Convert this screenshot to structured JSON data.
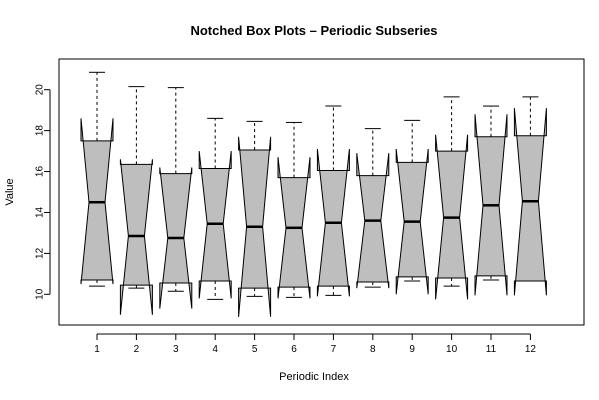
{
  "chart_data": {
    "type": "notched-box",
    "title": "Notched Box Plots – Periodic Subseries",
    "xlabel": "Periodic Index",
    "ylabel": "Value",
    "ylim": [
      8.5,
      21.5
    ],
    "yticks": [
      10,
      12,
      14,
      16,
      18,
      20
    ],
    "box_fill": "#bebebe",
    "categories": [
      "1",
      "2",
      "3",
      "4",
      "5",
      "6",
      "7",
      "8",
      "9",
      "10",
      "11",
      "12"
    ],
    "boxes": [
      {
        "min": 10.4,
        "q1": 10.7,
        "median": 14.5,
        "q3": 17.5,
        "max": 20.85,
        "notch_low": 10.5,
        "notch_high": 18.6
      },
      {
        "min": 10.3,
        "q1": 10.45,
        "median": 12.85,
        "q3": 16.35,
        "max": 20.15,
        "notch_low": 9.0,
        "notch_high": 16.6
      },
      {
        "min": 10.15,
        "q1": 10.55,
        "median": 12.75,
        "q3": 15.9,
        "max": 20.1,
        "notch_low": 9.3,
        "notch_high": 16.2
      },
      {
        "min": 9.75,
        "q1": 10.65,
        "median": 13.45,
        "q3": 16.15,
        "max": 18.6,
        "notch_low": 9.8,
        "notch_high": 17.0
      },
      {
        "min": 9.9,
        "q1": 10.3,
        "median": 13.3,
        "q3": 17.05,
        "max": 18.45,
        "notch_low": 8.9,
        "notch_high": 17.7
      },
      {
        "min": 9.85,
        "q1": 10.35,
        "median": 13.25,
        "q3": 15.7,
        "max": 18.4,
        "notch_low": 9.8,
        "notch_high": 16.7
      },
      {
        "min": 9.95,
        "q1": 10.4,
        "median": 13.5,
        "q3": 16.05,
        "max": 19.2,
        "notch_low": 9.9,
        "notch_high": 17.1
      },
      {
        "min": 10.35,
        "q1": 10.6,
        "median": 13.6,
        "q3": 15.8,
        "max": 18.1,
        "notch_low": 10.3,
        "notch_high": 16.9
      },
      {
        "min": 10.65,
        "q1": 10.85,
        "median": 13.55,
        "q3": 16.45,
        "max": 18.5,
        "notch_low": 10.0,
        "notch_high": 17.1
      },
      {
        "min": 10.4,
        "q1": 10.8,
        "median": 13.75,
        "q3": 17.0,
        "max": 19.65,
        "notch_low": 9.75,
        "notch_high": 17.8
      },
      {
        "min": 10.7,
        "q1": 10.9,
        "median": 14.35,
        "q3": 17.7,
        "max": 19.2,
        "notch_low": 9.95,
        "notch_high": 18.8
      },
      {
        "min": 10.65,
        "q1": 10.65,
        "median": 14.55,
        "q3": 17.75,
        "max": 19.65,
        "notch_low": 9.95,
        "notch_high": 19.1
      }
    ]
  }
}
